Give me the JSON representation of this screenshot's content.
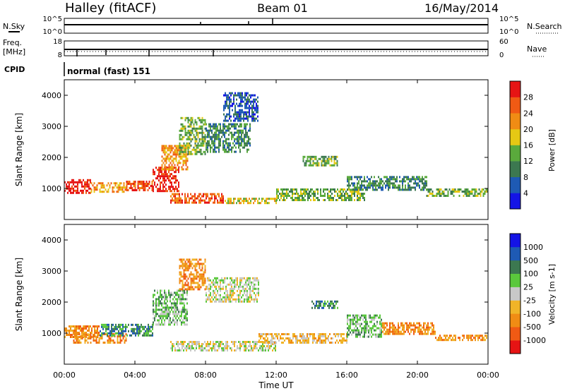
{
  "header": {
    "station": "Halley (fitACF)",
    "beam": "Beam 01",
    "date": "16/May/2014"
  },
  "top_panels": {
    "nsky": {
      "label": "N.Sky",
      "ytick_top": "10^5",
      "ytick_bottom": "10^0"
    },
    "nsearch": {
      "label": "N.Search",
      "ytick_top": "10^5",
      "ytick_bottom": "10^0"
    },
    "freq": {
      "label_line1": "Freq.",
      "label_line2": "[MHz]",
      "ytick_top": "18",
      "ytick_bottom": "8"
    },
    "nave": {
      "label": "Nave",
      "ytick_top": "60",
      "ytick_bottom": "0"
    },
    "cpid": {
      "label": "CPID",
      "value": "normal (fast) 151"
    }
  },
  "chart_data": [
    {
      "type": "heatmap",
      "name": "power",
      "ylabel": "Slant Range [km]",
      "yticks": [
        "1000",
        "2000",
        "3000",
        "4000"
      ],
      "ylim": [
        0,
        4500
      ],
      "xlim": [
        0,
        24
      ],
      "colorbar": {
        "label": "Power [dB]",
        "ticks": [
          "4",
          "8",
          "12",
          "16",
          "20",
          "24",
          "28"
        ],
        "colors": [
          "#1414e6",
          "#1e5ab4",
          "#3c7850",
          "#5aaa3c",
          "#e6c814",
          "#f08c14",
          "#f05a14",
          "#e61414"
        ]
      },
      "regions": [
        {
          "hours": [
            0.0,
            1.5
          ],
          "range_km": [
            850,
            1300
          ],
          "level": 7
        },
        {
          "hours": [
            1.5,
            3.5
          ],
          "range_km": [
            900,
            1200
          ],
          "level": 5
        },
        {
          "hours": [
            3.5,
            5.0
          ],
          "range_km": [
            950,
            1250
          ],
          "level": 6
        },
        {
          "hours": [
            5.0,
            6.5
          ],
          "range_km": [
            900,
            1700
          ],
          "level": 7
        },
        {
          "hours": [
            5.5,
            7.0
          ],
          "range_km": [
            1600,
            2400
          ],
          "level": 5
        },
        {
          "hours": [
            6.5,
            8.0
          ],
          "range_km": [
            2100,
            3300
          ],
          "level": 3
        },
        {
          "hours": [
            8.0,
            10.5
          ],
          "range_km": [
            2200,
            3100
          ],
          "level": 2
        },
        {
          "hours": [
            9.0,
            11.0
          ],
          "range_km": [
            3200,
            4100
          ],
          "level": 1
        },
        {
          "hours": [
            6.0,
            9.0
          ],
          "range_km": [
            550,
            850
          ],
          "level": 6
        },
        {
          "hours": [
            9.0,
            12.0
          ],
          "range_km": [
            500,
            700
          ],
          "level": 4
        },
        {
          "hours": [
            12.0,
            17.0
          ],
          "range_km": [
            650,
            1000
          ],
          "level": 3
        },
        {
          "hours": [
            13.5,
            15.5
          ],
          "range_km": [
            1750,
            2050
          ],
          "level": 3
        },
        {
          "hours": [
            16.0,
            20.5
          ],
          "range_km": [
            950,
            1400
          ],
          "level": 2
        },
        {
          "hours": [
            20.5,
            24.0
          ],
          "range_km": [
            750,
            1000
          ],
          "level": 3
        }
      ]
    },
    {
      "type": "heatmap",
      "name": "velocity",
      "ylabel": "Slant Range [km]",
      "yticks": [
        "1000",
        "2000",
        "3000",
        "4000"
      ],
      "ylim": [
        0,
        4500
      ],
      "xlim": [
        0,
        24
      ],
      "xlabel": "Time UT",
      "xticks": [
        "00:00",
        "04:00",
        "08:00",
        "12:00",
        "16:00",
        "20:00",
        "00:00"
      ],
      "colorbar": {
        "label": "Velocity [m s-1]",
        "ticks": [
          "-1000",
          "-500",
          "-100",
          "-25",
          "25",
          "100",
          "500",
          "1000"
        ],
        "colors": [
          "#e61414",
          "#f05a14",
          "#f08c14",
          "#f0b428",
          "#c8c8c8",
          "#5ac83c",
          "#3c7850",
          "#1e5ab4",
          "#1414e6"
        ]
      },
      "regions": [
        {
          "hours": [
            0.0,
            2.0
          ],
          "range_km": [
            850,
            1250
          ],
          "level": 2
        },
        {
          "hours": [
            0.5,
            3.5
          ],
          "range_km": [
            700,
            1000
          ],
          "level": 2
        },
        {
          "hours": [
            2.0,
            5.0
          ],
          "range_km": [
            900,
            1300
          ],
          "level": 6
        },
        {
          "hours": [
            5.0,
            7.0
          ],
          "range_km": [
            1300,
            2400
          ],
          "level": 5
        },
        {
          "hours": [
            6.5,
            8.0
          ],
          "range_km": [
            2400,
            3400
          ],
          "level": 2
        },
        {
          "hours": [
            8.0,
            11.0
          ],
          "range_km": [
            2000,
            2800
          ],
          "level": 4
        },
        {
          "hours": [
            6.0,
            12.0
          ],
          "range_km": [
            450,
            750
          ],
          "level": 4
        },
        {
          "hours": [
            11.0,
            16.0
          ],
          "range_km": [
            700,
            1000
          ],
          "level": 3
        },
        {
          "hours": [
            14.0,
            15.5
          ],
          "range_km": [
            1800,
            2050
          ],
          "level": 6
        },
        {
          "hours": [
            16.0,
            18.0
          ],
          "range_km": [
            900,
            1600
          ],
          "level": 5
        },
        {
          "hours": [
            18.0,
            21.0
          ],
          "range_km": [
            1000,
            1350
          ],
          "level": 2
        },
        {
          "hours": [
            21.0,
            24.0
          ],
          "range_km": [
            750,
            950
          ],
          "level": 2
        }
      ]
    }
  ]
}
